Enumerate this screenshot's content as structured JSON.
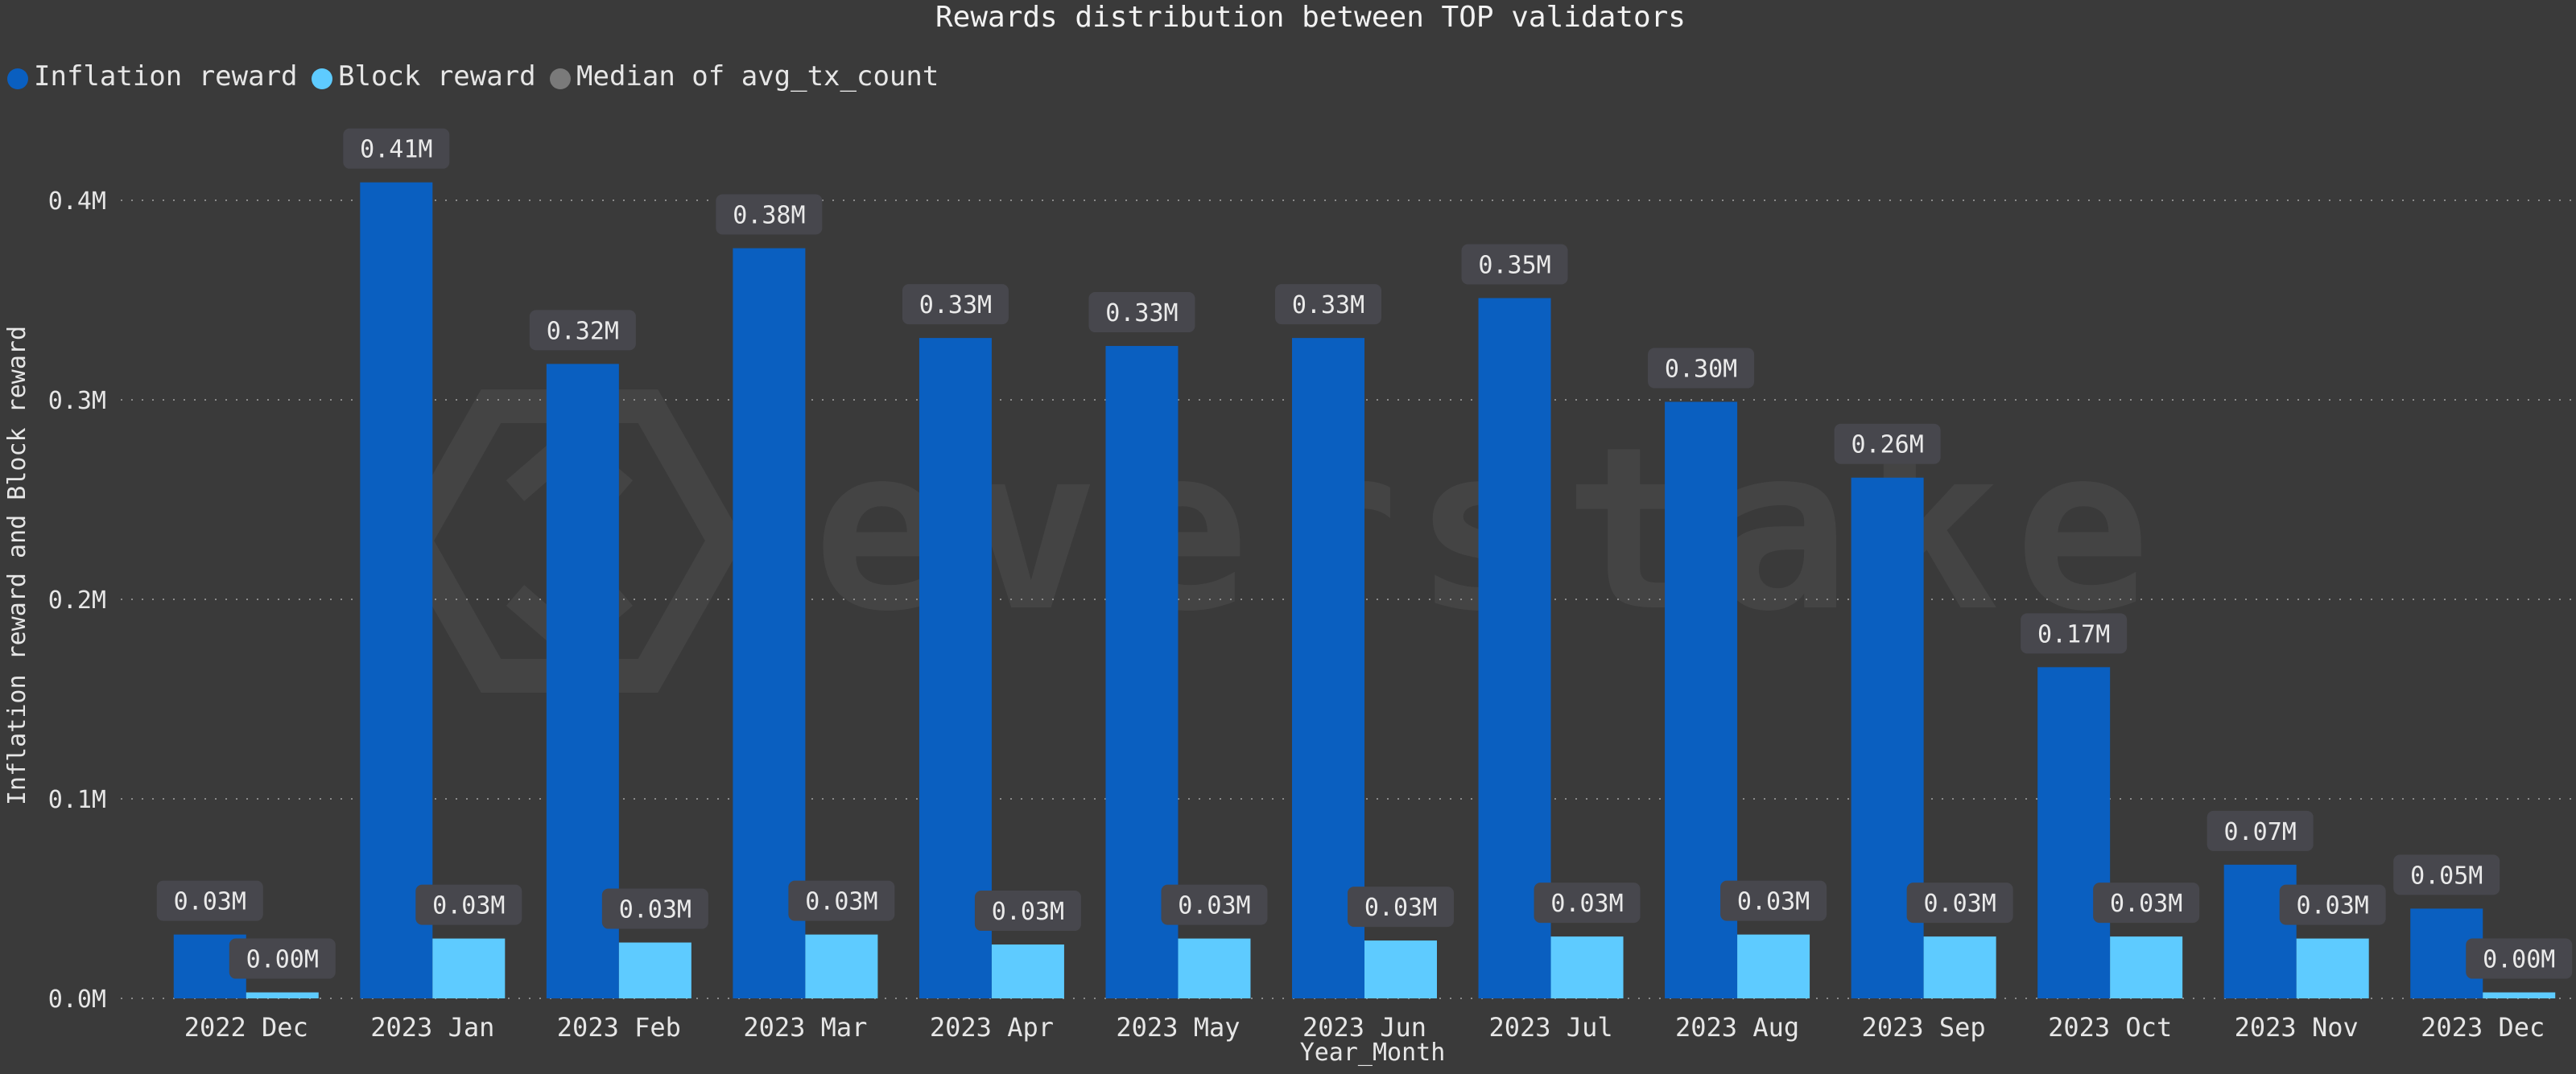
{
  "chart_data": {
    "type": "bar",
    "title": "Rewards distribution between TOP validators",
    "xlabel": "Year_Month",
    "ylabel": "Inflation reward and Block reward",
    "ylim": [
      0,
      0.43
    ],
    "y_unit": "M",
    "yticks": [
      0,
      0.1,
      0.2,
      0.3,
      0.4
    ],
    "ytick_labels": [
      "0.0M",
      "0.1M",
      "0.2M",
      "0.3M",
      "0.4M"
    ],
    "grid": true,
    "legend_position": "top-left",
    "categories": [
      "2022 Dec",
      "2023 Jan",
      "2023 Feb",
      "2023 Mar",
      "2023 Apr",
      "2023 May",
      "2023 Jun",
      "2023 Jul",
      "2023 Aug",
      "2023 Sep",
      "2023 Oct",
      "2023 Nov",
      "2023 Dec"
    ],
    "series": [
      {
        "name": "Inflation reward",
        "color": "#0a5fc0",
        "values": [
          0.032,
          0.409,
          0.318,
          0.376,
          0.331,
          0.327,
          0.331,
          0.351,
          0.299,
          0.261,
          0.166,
          0.067,
          0.045
        ],
        "labels": [
          "0.03M",
          "0.41M",
          "0.32M",
          "0.38M",
          "0.33M",
          "0.33M",
          "0.33M",
          "0.35M",
          "0.30M",
          "0.26M",
          "0.17M",
          "0.07M",
          "0.05M"
        ]
      },
      {
        "name": "Block reward",
        "color": "#5ecbff",
        "values": [
          0.003,
          0.03,
          0.028,
          0.032,
          0.027,
          0.03,
          0.029,
          0.031,
          0.032,
          0.031,
          0.031,
          0.03,
          0.003
        ],
        "labels": [
          "0.00M",
          "0.03M",
          "0.03M",
          "0.03M",
          "0.03M",
          "0.03M",
          "0.03M",
          "0.03M",
          "0.03M",
          "0.03M",
          "0.03M",
          "0.03M",
          "0.00M"
        ]
      }
    ],
    "legend": [
      {
        "name": "Inflation reward",
        "color": "#0a5fc0"
      },
      {
        "name": "Block reward",
        "color": "#5ecbff"
      },
      {
        "name": "Median of avg_tx_count",
        "color": "#7a7a7a"
      }
    ]
  },
  "watermark": {
    "text": "everstake"
  }
}
